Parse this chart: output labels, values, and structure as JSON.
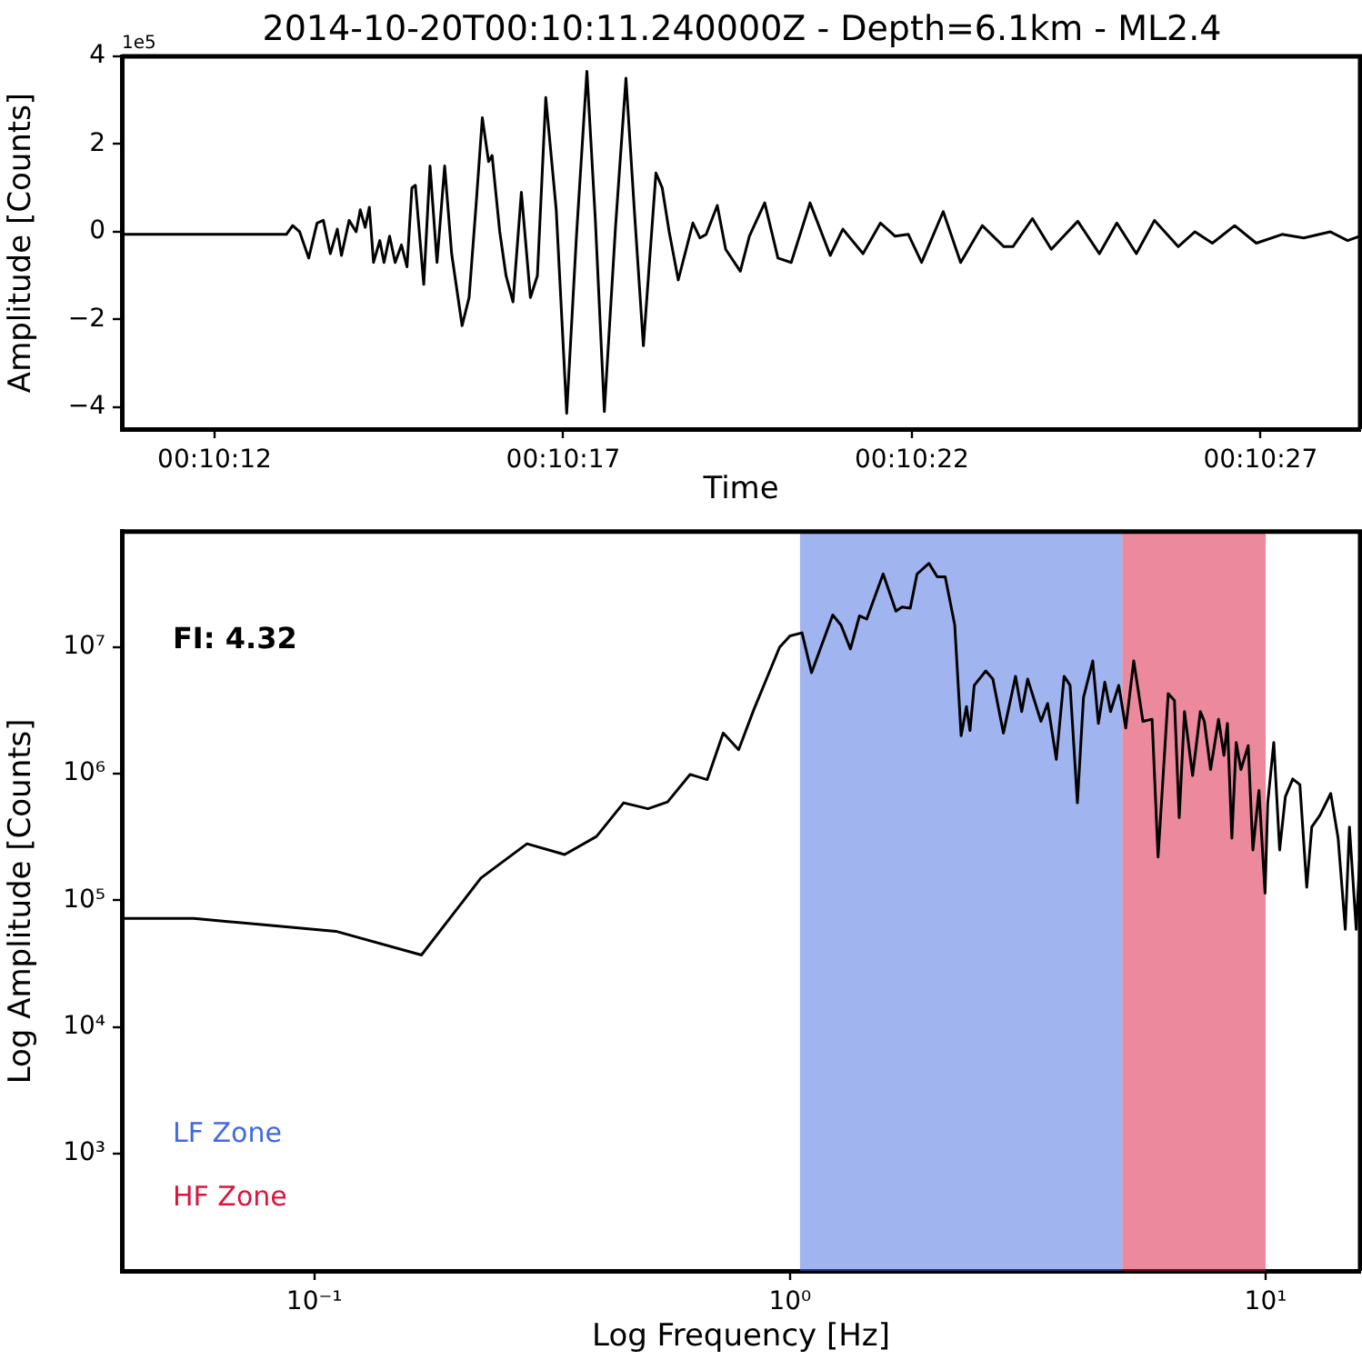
{
  "chart_data": [
    {
      "type": "line",
      "title": "2014-10-20T00:10:11.240000Z - Depth=6.1km - ML2.4",
      "xlabel": "Time",
      "ylabel": "Amplitude [Counts]",
      "annotations": [
        "1e5"
      ],
      "x": [
        "2014-10-20T00:10:10.67",
        "2014-10-20T00:10:13.03",
        "2014-10-20T00:10:13.12",
        "2014-10-20T00:10:13.22",
        "2014-10-20T00:10:13.35",
        "2014-10-20T00:10:13.47",
        "2014-10-20T00:10:13.56",
        "2014-10-20T00:10:13.66",
        "2014-10-20T00:10:13.76",
        "2014-10-20T00:10:13.82",
        "2014-10-20T00:10:13.93",
        "2014-10-20T00:10:14.03",
        "2014-10-20T00:10:14.09",
        "2014-10-20T00:10:14.16",
        "2014-10-20T00:10:14.22",
        "2014-10-20T00:10:14.28",
        "2014-10-20T00:10:14.37",
        "2014-10-20T00:10:14.43",
        "2014-10-20T00:10:14.51",
        "2014-10-20T00:10:14.59",
        "2014-10-20T00:10:14.68",
        "2014-10-20T00:10:14.76",
        "2014-10-20T00:10:14.83",
        "2014-10-20T00:10:14.88",
        "2014-10-20T00:10:15.00",
        "2014-10-20T00:10:15.09",
        "2014-10-20T00:10:15.19",
        "2014-10-20T00:10:15.30",
        "2014-10-20T00:10:15.40",
        "2014-10-20T00:10:15.55",
        "2014-10-20T00:10:15.65",
        "2014-10-20T00:10:15.75",
        "2014-10-20T00:10:15.84",
        "2014-10-20T00:10:15.93",
        "2014-10-20T00:10:15.98",
        "2014-10-20T00:10:16.09",
        "2014-10-20T00:10:16.18",
        "2014-10-20T00:10:16.28",
        "2014-10-20T00:10:16.40",
        "2014-10-20T00:10:16.53",
        "2014-10-20T00:10:16.63",
        "2014-10-20T00:10:16.75",
        "2014-10-20T00:10:16.90",
        "2014-10-20T00:10:17.05",
        "2014-10-20T00:10:17.19",
        "2014-10-20T00:10:17.34",
        "2014-10-20T00:10:17.46",
        "2014-10-20T00:10:17.59",
        "2014-10-20T00:10:17.75",
        "2014-10-20T00:10:17.90",
        "2014-10-20T00:10:18.02",
        "2014-10-20T00:10:18.15",
        "2014-10-20T00:10:18.33",
        "2014-10-20T00:10:18.42",
        "2014-10-20T00:10:18.52",
        "2014-10-20T00:10:18.65",
        "2014-10-20T00:10:18.86",
        "2014-10-20T00:10:18.96",
        "2014-10-20T00:10:19.05",
        "2014-10-20T00:10:19.21",
        "2014-10-20T00:10:19.33",
        "2014-10-20T00:10:19.54",
        "2014-10-20T00:10:19.67",
        "2014-10-20T00:10:19.89",
        "2014-10-20T00:10:20.08",
        "2014-10-20T00:10:20.27",
        "2014-10-20T00:10:20.54",
        "2014-10-20T00:10:20.83",
        "2014-10-20T00:10:21.01",
        "2014-10-20T00:10:21.30",
        "2014-10-20T00:10:21.55",
        "2014-10-20T00:10:21.76",
        "2014-10-20T00:10:21.95",
        "2014-10-20T00:10:22.14",
        "2014-10-20T00:10:22.45",
        "2014-10-20T00:10:22.70",
        "2014-10-20T00:10:23.01",
        "2014-10-20T00:10:23.32",
        "2014-10-20T00:10:23.45",
        "2014-10-20T00:10:23.73",
        "2014-10-20T00:10:24.00",
        "2014-10-20T00:10:24.38",
        "2014-10-20T00:10:24.69",
        "2014-10-20T00:10:24.94",
        "2014-10-20T00:10:25.22",
        "2014-10-20T00:10:25.48",
        "2014-10-20T00:10:25.82",
        "2014-10-20T00:10:26.06",
        "2014-10-20T00:10:26.31",
        "2014-10-20T00:10:26.63",
        "2014-10-20T00:10:26.94",
        "2014-10-20T00:10:27.31",
        "2014-10-20T00:10:27.62",
        "2014-10-20T00:10:28.00",
        "2014-10-20T00:10:28.25",
        "2014-10-20T00:10:28.43"
      ],
      "series": [
        {
          "color": "#000000",
          "values": [
            -0.06,
            -0.06,
            0.14,
            0,
            -0.6,
            0.2,
            0.26,
            -0.5,
            0.06,
            -0.54,
            0.26,
            0,
            0.5,
            0.1,
            0.56,
            -0.7,
            -0.2,
            -0.7,
            -0.1,
            -0.7,
            -0.3,
            -0.8,
            1.0,
            1.06,
            -1.2,
            1.5,
            -0.7,
            1.5,
            -0.5,
            -2.14,
            -1.5,
            0.6,
            2.6,
            1.6,
            1.74,
            0,
            -1.0,
            -1.6,
            0.9,
            -1.5,
            -1.0,
            3.06,
            0.5,
            -4.14,
            -0.1,
            3.66,
            0.3,
            -4.1,
            0.1,
            3.5,
            0.5,
            -2.6,
            1.34,
            1.0,
            0,
            -1.1,
            0.2,
            -0.14,
            -0.06,
            0.6,
            -0.4,
            -0.9,
            -0.1,
            0.66,
            -0.6,
            -0.7,
            0.66,
            -0.54,
            0.06,
            -0.5,
            0.2,
            -0.1,
            -0.06,
            -0.7,
            0.46,
            -0.7,
            0.14,
            -0.34,
            -0.34,
            0.3,
            -0.4,
            0.24,
            -0.5,
            0.2,
            -0.5,
            0.26,
            -0.34,
            0,
            -0.26,
            0.14,
            -0.26,
            -0.06,
            -0.14,
            0,
            -0.2,
            -0.1
          ]
        }
      ],
      "xlim": [
        "2014-10-20T00:10:10.67",
        "2014-10-20T00:10:28.43"
      ],
      "xticks": [
        {
          "value": "2014-10-20T00:10:12",
          "label": "00:10:12"
        },
        {
          "value": "2014-10-20T00:10:17",
          "label": "00:10:17"
        },
        {
          "value": "2014-10-20T00:10:22",
          "label": "00:10:22"
        },
        {
          "value": "2014-10-20T00:10:27",
          "label": "00:10:27"
        }
      ],
      "ylim": [
        -4.5,
        4
      ],
      "yticks": [
        {
          "value": -4,
          "label": "−4"
        },
        {
          "value": -2,
          "label": "−2"
        },
        0,
        2,
        4
      ],
      "grid": false,
      "legend": false,
      "marker": "none",
      "line_style": "solid"
    },
    {
      "type": "line",
      "xlabel": "Log Frequency [Hz]",
      "ylabel": "Log Amplitude [Counts]",
      "annotations": [
        "FI: 4.32"
      ],
      "log": "xy",
      "x": [
        0.0394,
        0.0558,
        0.111,
        0.168,
        0.224,
        0.28,
        0.336,
        0.392,
        0.447,
        0.503,
        0.553,
        0.617,
        0.67,
        0.724,
        0.78,
        0.839,
        0.951,
        1.0,
        1.06,
        1.11,
        1.23,
        1.28,
        1.34,
        1.4,
        1.45,
        1.57,
        1.67,
        1.72,
        1.79,
        1.85,
        1.96,
        2.04,
        2.12,
        2.22,
        2.29,
        2.35,
        2.39,
        2.44,
        2.58,
        2.67,
        2.81,
        2.98,
        3.07,
        3.16,
        3.37,
        3.48,
        3.63,
        3.77,
        3.88,
        4.02,
        4.14,
        4.33,
        4.45,
        4.59,
        4.72,
        4.91,
        5.08,
        5.28,
        5.52,
        5.77,
        5.94,
        6.24,
        6.43,
        6.58,
        6.75,
        7.02,
        7.29,
        7.43,
        7.66,
        7.96,
        8.17,
        8.31,
        8.49,
        8.67,
        8.87,
        9.19,
        9.4,
        9.68,
        9.97,
        10.1,
        10.4,
        10.7,
        11.0,
        11.4,
        11.8,
        12.2,
        12.5,
        13.0,
        13.7,
        14.2,
        14.7,
        15.0,
        15.5,
        15.8
      ],
      "series": [
        {
          "color": "#000000",
          "values": [
            72000,
            72000,
            57000,
            37000,
            150000,
            280000,
            230000,
            320000,
            590000,
            530000,
            600000,
            990000,
            900000,
            2100000,
            1550000,
            3200000,
            10000000,
            12300000,
            13000000,
            6300000,
            18000000,
            15000000,
            9700000,
            17700000,
            16700000,
            38000000,
            19300000,
            20800000,
            20400000,
            38000000,
            46000000,
            36000000,
            36000000,
            15000000,
            2000000,
            3400000,
            2200000,
            5000000,
            6500000,
            5600000,
            2100000,
            5900000,
            3100000,
            5600000,
            2600000,
            3600000,
            1300000,
            5900000,
            5000000,
            590000,
            4000000,
            7800000,
            2500000,
            5300000,
            3100000,
            5000000,
            2300000,
            7800000,
            2600000,
            2700000,
            220000,
            4300000,
            3800000,
            450000,
            3100000,
            970000,
            3100000,
            2600000,
            1080000,
            2700000,
            1400000,
            2500000,
            310000,
            1770000,
            1080000,
            1670000,
            250000,
            740000,
            114000,
            590000,
            1770000,
            250000,
            660000,
            910000,
            820000,
            127000,
            380000,
            470000,
            700000,
            310000,
            59000,
            380000,
            59000,
            250000
          ]
        }
      ],
      "bands": [
        {
          "axis": "x",
          "from": 1.05,
          "to": 5,
          "label": "LF Zone",
          "color": "#4169e1"
        },
        {
          "axis": "x",
          "from": 5,
          "to": 10,
          "label": "HF Zone",
          "color": "#dc143c"
        }
      ],
      "xlim": [
        0.0394,
        15.8
      ],
      "xticks": [
        {
          "value": 0.1,
          "label": "10⁻¹"
        },
        {
          "value": 1,
          "label": "10⁰"
        },
        {
          "value": 10,
          "label": "10¹"
        }
      ],
      "ylim": [
        118,
        82000000
      ],
      "yticks": [
        {
          "value": 1000,
          "label": "10³"
        },
        {
          "value": 10000,
          "label": "10⁴"
        },
        {
          "value": 100000,
          "label": "10⁵"
        },
        {
          "value": 1000000,
          "label": "10⁶"
        },
        {
          "value": 10000000,
          "label": "10⁷"
        }
      ],
      "grid": false,
      "legend": false,
      "marker": "none",
      "line_style": "solid"
    }
  ]
}
